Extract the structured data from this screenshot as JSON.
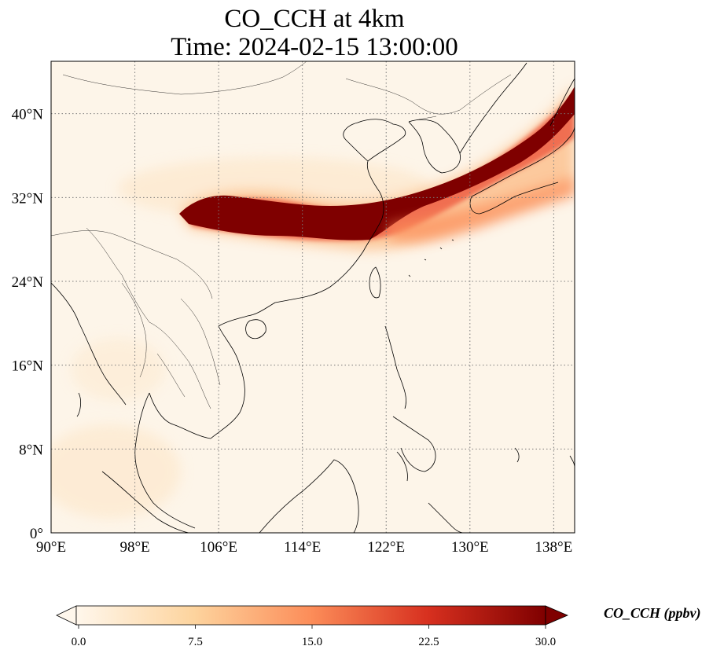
{
  "title": {
    "line1": "CO_CCH at 4km",
    "line2": "Time: 2024-02-15 13:00:00"
  },
  "map": {
    "projection": "PlateCarree",
    "lon_range": [
      90,
      140
    ],
    "lat_range": [
      0,
      45
    ],
    "gridlines": "dotted",
    "coastlines": true,
    "borders": true,
    "lon_ticks": [
      "90°E",
      "98°E",
      "106°E",
      "114°E",
      "122°E",
      "130°E",
      "138°E"
    ],
    "lat_ticks": [
      "0°",
      "8°N",
      "16°N",
      "24°N",
      "32°N",
      "40°N"
    ]
  },
  "colorbar": {
    "label": "CO_CCH (ppbv)",
    "colormap": "OrRd",
    "ticks": [
      "0.0",
      "7.5",
      "15.0",
      "22.5",
      "30.0"
    ],
    "extend": "both",
    "colors": [
      "#fff7ec",
      "#fdd49e",
      "#fc8d59",
      "#d7301f",
      "#7f0000"
    ]
  },
  "field": {
    "background_color": "#fdf5e9",
    "plume_color": "#7f0000"
  }
}
